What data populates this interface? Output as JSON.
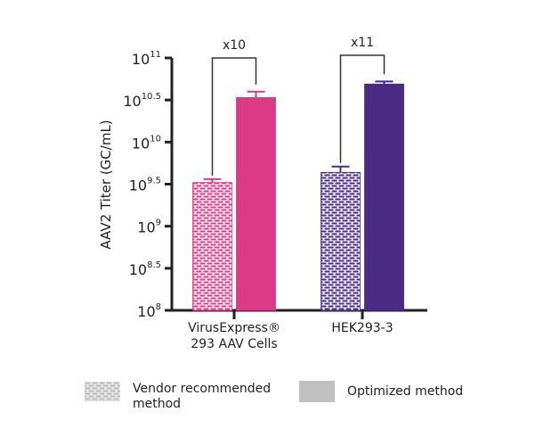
{
  "chart_data": {
    "type": "bar",
    "ylabel": "AAV2 Titer (GC/mL)",
    "yscale": "log10",
    "ylim": [
      8,
      11
    ],
    "yticks": [
      {
        "value": 8,
        "base": "10",
        "exp": "8"
      },
      {
        "value": 8.5,
        "base": "10",
        "exp": "8.5"
      },
      {
        "value": 9,
        "base": "10",
        "exp": "9"
      },
      {
        "value": 9.5,
        "base": "10",
        "exp": "9.5"
      },
      {
        "value": 10,
        "base": "10",
        "exp": "10"
      },
      {
        "value": 10.5,
        "base": "10",
        "exp": "10.5"
      },
      {
        "value": 11,
        "base": "10",
        "exp": "11"
      }
    ],
    "categories": [
      {
        "line1": "VirusExpress®",
        "line2": "293 AAV Cells"
      },
      {
        "line1": "HEK293-3",
        "line2": ""
      }
    ],
    "series": [
      {
        "name": "Vendor recommended method",
        "pattern": "brick",
        "log10_values": [
          9.52,
          9.64
        ],
        "log10_error_top": [
          9.56,
          9.71
        ]
      },
      {
        "name": "Optimized method",
        "pattern": "solid",
        "log10_values": [
          10.53,
          10.69
        ],
        "log10_error_top": [
          10.6,
          10.72
        ]
      }
    ],
    "colors": [
      "#dc3a87",
      "#4a2a82"
    ],
    "annotations": [
      "x10",
      "x11"
    ],
    "grid": false,
    "legend_placement": "bottom"
  },
  "legend": {
    "vendor_label": "Vendor recommended method",
    "optimized_label": "Optimized method",
    "swatch_color": "#c0c0c0"
  }
}
